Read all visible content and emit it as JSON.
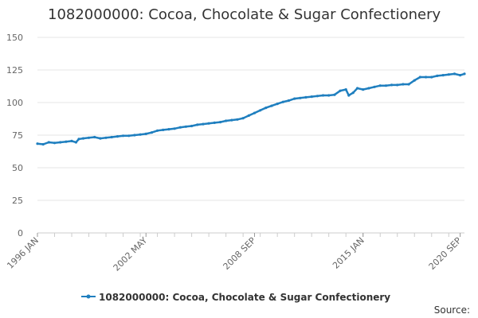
{
  "chart_data": {
    "type": "line",
    "title": "1082000000: Cocoa, Chocolate & Sugar Confectionery",
    "xlabel": "",
    "ylabel": "",
    "ylim": [
      0,
      150
    ],
    "yticks": [
      0,
      25,
      50,
      75,
      100,
      125,
      150
    ],
    "xlim": [
      "1996 JAN",
      "2020 DEC"
    ],
    "x_tick_labels": [
      "1996 JAN",
      "2002 MAY",
      "2008 SEP",
      "2015 JAN",
      "2020 SEP"
    ],
    "grid": true,
    "legend_position": "bottom",
    "series": [
      {
        "name": "1082000000: Cocoa, Chocolate & Sugar Confectionery",
        "color": "#1f7fbf",
        "marker": "circle",
        "points": [
          [
            "1996 JAN",
            68.5
          ],
          [
            "1996 MAY",
            68
          ],
          [
            "1996 SEP",
            69.5
          ],
          [
            "1997 JAN",
            69
          ],
          [
            "1997 MAY",
            69.5
          ],
          [
            "1997 SEP",
            70
          ],
          [
            "1998 JAN",
            70.5
          ],
          [
            "1998 APR",
            69.5
          ],
          [
            "1998 JUN",
            72
          ],
          [
            "1998 SEP",
            72.5
          ],
          [
            "1999 JAN",
            73
          ],
          [
            "1999 MAY",
            73.5
          ],
          [
            "1999 SEP",
            72.5
          ],
          [
            "2000 JAN",
            73
          ],
          [
            "2000 MAY",
            73.5
          ],
          [
            "2000 SEP",
            74
          ],
          [
            "2001 JAN",
            74.5
          ],
          [
            "2001 MAY",
            74.5
          ],
          [
            "2001 SEP",
            75
          ],
          [
            "2002 JAN",
            75.5
          ],
          [
            "2002 MAY",
            76
          ],
          [
            "2002 SEP",
            77
          ],
          [
            "2003 JAN",
            78.5
          ],
          [
            "2003 MAY",
            79
          ],
          [
            "2003 SEP",
            79.5
          ],
          [
            "2004 JAN",
            80
          ],
          [
            "2004 MAY",
            81
          ],
          [
            "2004 SEP",
            81.5
          ],
          [
            "2005 JAN",
            82
          ],
          [
            "2005 MAY",
            83
          ],
          [
            "2005 SEP",
            83.5
          ],
          [
            "2006 JAN",
            84
          ],
          [
            "2006 MAY",
            84.5
          ],
          [
            "2006 SEP",
            85
          ],
          [
            "2007 JAN",
            86
          ],
          [
            "2007 MAY",
            86.5
          ],
          [
            "2007 SEP",
            87
          ],
          [
            "2008 JAN",
            88
          ],
          [
            "2008 MAY",
            90
          ],
          [
            "2008 SEP",
            92
          ],
          [
            "2009 JAN",
            94
          ],
          [
            "2009 MAY",
            96
          ],
          [
            "2009 SEP",
            97.5
          ],
          [
            "2010 JAN",
            99
          ],
          [
            "2010 MAY",
            100.5
          ],
          [
            "2010 SEP",
            101.5
          ],
          [
            "2011 JAN",
            103
          ],
          [
            "2011 MAY",
            103.5
          ],
          [
            "2011 SEP",
            104
          ],
          [
            "2012 JAN",
            104.5
          ],
          [
            "2012 MAY",
            105
          ],
          [
            "2012 SEP",
            105.5
          ],
          [
            "2013 JAN",
            105.5
          ],
          [
            "2013 MAY",
            106
          ],
          [
            "2013 SEP",
            109
          ],
          [
            "2014 JAN",
            110
          ],
          [
            "2014 MAR",
            105.5
          ],
          [
            "2014 JUN",
            107.5
          ],
          [
            "2014 SEP",
            111
          ],
          [
            "2015 JAN",
            110
          ],
          [
            "2015 MAY",
            111
          ],
          [
            "2015 SEP",
            112
          ],
          [
            "2016 JAN",
            113
          ],
          [
            "2016 MAY",
            113
          ],
          [
            "2016 SEP",
            113.5
          ],
          [
            "2017 JAN",
            113.5
          ],
          [
            "2017 MAY",
            114
          ],
          [
            "2017 SEP",
            114
          ],
          [
            "2018 JAN",
            117
          ],
          [
            "2018 MAY",
            119.5
          ],
          [
            "2018 SEP",
            119.5
          ],
          [
            "2019 JAN",
            119.5
          ],
          [
            "2019 MAY",
            120.5
          ],
          [
            "2019 SEP",
            121
          ],
          [
            "2020 JAN",
            121.5
          ],
          [
            "2020 MAY",
            122
          ],
          [
            "2020 SEP",
            121
          ],
          [
            "2020 DEC",
            122
          ]
        ]
      }
    ]
  },
  "source_label": "Source:"
}
